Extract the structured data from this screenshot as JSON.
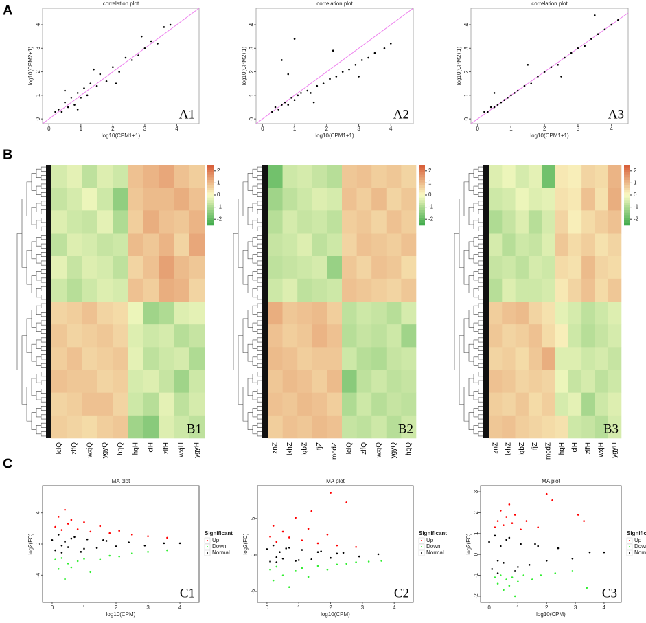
{
  "row_labels": [
    "A",
    "B",
    "C"
  ],
  "chart_data": [
    {
      "type": "scatter",
      "title": "correlation plot",
      "label": "A1",
      "x_label": "log10(CPM1+1)",
      "y_label": "log10(CPM2+1)",
      "color": "#000000",
      "identity_line_color": "#ee82ee",
      "x": [
        0.2,
        0.3,
        0.4,
        0.5,
        0.6,
        0.7,
        0.8,
        0.9,
        1.0,
        1.1,
        1.2,
        1.3,
        1.5,
        1.6,
        1.8,
        2.0,
        2.2,
        2.4,
        2.6,
        2.8,
        3.0,
        3.2,
        3.4,
        3.6,
        0.5,
        0.9,
        1.4,
        2.1,
        2.9,
        3.8
      ],
      "y": [
        0.3,
        0.4,
        0.3,
        0.7,
        0.5,
        0.9,
        0.6,
        1.1,
        0.9,
        1.3,
        1.0,
        1.5,
        1.4,
        1.9,
        1.6,
        2.2,
        2.0,
        2.6,
        2.5,
        2.7,
        3.0,
        3.3,
        3.2,
        3.9,
        1.2,
        0.4,
        2.1,
        1.5,
        3.5,
        4.0
      ],
      "xlim": [
        -0.2,
        4.7
      ],
      "ylim": [
        -0.2,
        4.7
      ],
      "xticks": [
        0,
        1,
        2,
        3,
        4
      ],
      "yticks": [
        0,
        1,
        2,
        3,
        4
      ]
    },
    {
      "type": "scatter",
      "title": "correlation plot",
      "label": "A2",
      "x_label": "log10(CPM1+1)",
      "y_label": "log10(CPM2+1)",
      "color": "#000000",
      "identity_line_color": "#ee82ee",
      "x": [
        0.3,
        0.4,
        0.5,
        0.6,
        0.7,
        0.8,
        0.9,
        1.0,
        1.1,
        1.2,
        1.4,
        1.5,
        1.7,
        1.9,
        2.1,
        2.3,
        2.5,
        2.7,
        2.9,
        3.1,
        3.3,
        3.5,
        3.8,
        4.0,
        0.6,
        1.0,
        1.6,
        2.2,
        0.8,
        3.0
      ],
      "y": [
        0.3,
        0.5,
        0.4,
        0.6,
        0.7,
        0.6,
        0.9,
        0.8,
        1.0,
        1.1,
        1.2,
        1.1,
        1.4,
        1.5,
        1.7,
        1.8,
        2.0,
        2.1,
        2.3,
        2.5,
        2.6,
        2.8,
        3.0,
        3.2,
        2.5,
        3.4,
        0.7,
        2.9,
        1.9,
        1.8
      ],
      "xlim": [
        -0.2,
        4.7
      ],
      "ylim": [
        -0.2,
        4.7
      ],
      "xticks": [
        0,
        1,
        2,
        3,
        4
      ],
      "yticks": [
        0,
        1,
        2,
        3,
        4
      ]
    },
    {
      "type": "scatter",
      "title": "correlation plot",
      "label": "A3",
      "x_label": "log10(CPM1+1)",
      "y_label": "log10(CPM2+1)",
      "color": "#000000",
      "identity_line_color": "#ee82ee",
      "x": [
        0.2,
        0.3,
        0.4,
        0.5,
        0.6,
        0.7,
        0.8,
        0.9,
        1.0,
        1.1,
        1.2,
        1.4,
        1.6,
        1.8,
        2.0,
        2.2,
        2.4,
        2.6,
        2.8,
        3.0,
        3.2,
        3.4,
        3.6,
        3.8,
        4.0,
        4.2,
        0.5,
        1.5,
        2.5,
        3.5
      ],
      "y": [
        0.3,
        0.3,
        0.5,
        0.5,
        0.6,
        0.7,
        0.8,
        0.9,
        1.0,
        1.1,
        1.2,
        1.4,
        1.5,
        1.8,
        2.0,
        2.2,
        2.3,
        2.6,
        2.8,
        3.0,
        3.1,
        3.4,
        3.6,
        3.8,
        4.0,
        4.2,
        1.1,
        2.3,
        1.8,
        4.4
      ],
      "xlim": [
        -0.2,
        4.5
      ],
      "ylim": [
        -0.2,
        4.7
      ],
      "xticks": [
        0,
        1,
        2,
        3,
        4
      ],
      "yticks": [
        0,
        1,
        2,
        3,
        4
      ]
    },
    {
      "type": "heatmap",
      "label": "B1",
      "colorscale": [
        "#3daa4a",
        "#fbfbc4",
        "#d65a35"
      ],
      "zlim": [
        -2.5,
        2.5
      ],
      "zticks": [
        2,
        1,
        0,
        -1,
        -2
      ],
      "columns": [
        "lclQ",
        "zlfQ",
        "wxjQ",
        "ygyQ",
        "hqQ",
        "hqH",
        "lclH",
        "zlfH",
        "wxjH",
        "ygyH"
      ],
      "values": [
        [
          -0.5,
          -0.3,
          -0.8,
          -0.4,
          -0.6,
          0.9,
          1.1,
          1.3,
          0.9,
          0.7
        ],
        [
          -0.7,
          -0.5,
          -0.2,
          -0.6,
          -1.4,
          0.8,
          1.0,
          1.0,
          1.2,
          0.9
        ],
        [
          -0.4,
          -0.6,
          -0.7,
          -0.3,
          -1.0,
          0.7,
          1.2,
          0.9,
          0.8,
          1.1
        ],
        [
          -0.8,
          -0.4,
          -0.5,
          -0.7,
          -0.6,
          1.0,
          0.8,
          1.1,
          0.6,
          1.3
        ],
        [
          -0.3,
          -0.7,
          -0.4,
          -0.5,
          -0.8,
          0.6,
          0.9,
          1.4,
          1.0,
          0.8
        ],
        [
          -0.6,
          -0.9,
          -0.6,
          -0.4,
          -0.5,
          0.9,
          0.7,
          1.2,
          1.1,
          0.6
        ],
        [
          0.6,
          0.7,
          0.9,
          0.6,
          0.5,
          -0.2,
          -1.2,
          -1.0,
          -0.4,
          -0.3
        ],
        [
          0.8,
          0.6,
          0.7,
          0.8,
          0.6,
          -0.4,
          -0.6,
          -0.5,
          -0.9,
          -0.7
        ],
        [
          0.7,
          0.9,
          0.6,
          0.7,
          0.8,
          -0.3,
          -0.8,
          -0.6,
          -0.5,
          -1.0
        ],
        [
          0.9,
          0.8,
          0.8,
          0.6,
          0.7,
          -0.5,
          -0.4,
          -0.7,
          -1.2,
          -0.6
        ],
        [
          0.6,
          0.7,
          0.9,
          0.9,
          0.6,
          -0.6,
          -0.9,
          -0.3,
          -0.8,
          -0.5
        ],
        [
          0.7,
          0.6,
          0.5,
          0.7,
          0.8,
          -1.2,
          -1.5,
          -0.4,
          -0.6,
          -0.8
        ]
      ]
    },
    {
      "type": "heatmap",
      "label": "B2",
      "colorscale": [
        "#3daa4a",
        "#fbfbc4",
        "#d65a35"
      ],
      "zlim": [
        -2.5,
        2.5
      ],
      "zticks": [
        2,
        1,
        0,
        -1,
        -2
      ],
      "columns": [
        "znZ",
        "lxhZ",
        "lqbZ",
        "fjZ",
        "mcdZ",
        "lclQ",
        "zlfQ",
        "wxjQ",
        "ygyQ",
        "hqQ"
      ],
      "values": [
        [
          -1.8,
          -0.6,
          -0.5,
          -0.7,
          -0.9,
          0.8,
          0.9,
          0.7,
          0.8,
          0.6
        ],
        [
          -1.2,
          -0.8,
          -0.6,
          -0.4,
          -0.5,
          0.9,
          0.7,
          1.0,
          0.6,
          0.8
        ],
        [
          -0.9,
          -0.5,
          -0.7,
          -0.6,
          -0.8,
          0.7,
          0.8,
          0.6,
          0.9,
          0.7
        ],
        [
          -0.7,
          -0.6,
          -0.4,
          -0.8,
          -0.6,
          0.6,
          0.9,
          0.8,
          0.7,
          0.9
        ],
        [
          -0.8,
          -0.7,
          -0.6,
          -0.5,
          -1.3,
          0.8,
          0.6,
          0.9,
          0.8,
          0.5
        ],
        [
          -0.6,
          -0.4,
          -0.8,
          -0.7,
          -0.6,
          0.9,
          0.8,
          0.7,
          0.6,
          0.8
        ],
        [
          1.2,
          0.8,
          0.9,
          1.0,
          0.7,
          -0.8,
          -0.6,
          -0.7,
          -0.9,
          -0.5
        ],
        [
          0.9,
          0.7,
          0.8,
          1.1,
          0.9,
          -0.9,
          -0.7,
          -0.8,
          -0.6,
          -1.2
        ],
        [
          1.0,
          0.9,
          0.7,
          0.8,
          0.8,
          -0.6,
          -0.9,
          -1.0,
          -0.7,
          -0.6
        ],
        [
          0.8,
          1.0,
          0.9,
          0.7,
          1.0,
          -1.5,
          -0.8,
          -0.6,
          -0.8,
          -0.7
        ],
        [
          0.9,
          0.8,
          1.0,
          0.9,
          0.7,
          -1.0,
          -0.6,
          -0.9,
          -0.7,
          -0.8
        ],
        [
          0.7,
          0.9,
          0.8,
          1.0,
          0.9,
          -0.7,
          -0.8,
          -0.6,
          -0.9,
          -0.6
        ]
      ]
    },
    {
      "type": "heatmap",
      "label": "B3",
      "colorscale": [
        "#3daa4a",
        "#fbfbc4",
        "#d65a35"
      ],
      "zlim": [
        -2.5,
        2.5
      ],
      "zticks": [
        2,
        1,
        0,
        -1,
        -2
      ],
      "columns": [
        "znZ",
        "lxhZ",
        "lqbZ",
        "fjZ",
        "mcdZ",
        "hqH",
        "lclH",
        "zlfH",
        "wxjH",
        "ygyH"
      ],
      "values": [
        [
          -0.4,
          -0.2,
          -0.5,
          -0.3,
          -1.8,
          0.3,
          0.2,
          0.6,
          0.5,
          1.1
        ],
        [
          -0.6,
          -0.5,
          -0.2,
          -0.4,
          -0.3,
          0.4,
          0.3,
          0.9,
          0.4,
          1.2
        ],
        [
          -1.0,
          -0.7,
          -0.4,
          -0.9,
          -0.5,
          0.6,
          0.2,
          0.5,
          0.7,
          0.9
        ],
        [
          -0.5,
          -0.9,
          -0.6,
          -0.7,
          -0.4,
          0.8,
          0.5,
          0.7,
          0.4,
          0.6
        ],
        [
          -0.7,
          -0.6,
          -0.8,
          -0.5,
          -0.6,
          0.5,
          0.4,
          1.0,
          0.6,
          0.5
        ],
        [
          -0.9,
          -0.4,
          -0.6,
          -0.6,
          -0.5,
          0.3,
          0.6,
          0.9,
          0.5,
          0.8
        ],
        [
          0.7,
          0.9,
          1.0,
          0.6,
          0.4,
          -0.3,
          -0.5,
          -0.8,
          -0.6,
          -0.4
        ],
        [
          0.8,
          0.6,
          0.7,
          0.9,
          0.5,
          0.2,
          -0.6,
          -0.9,
          -0.7,
          -0.5
        ],
        [
          0.6,
          0.7,
          0.5,
          0.8,
          1.2,
          -0.4,
          -0.4,
          -0.6,
          -0.5,
          -0.7
        ],
        [
          0.9,
          0.8,
          0.6,
          0.7,
          0.6,
          -0.2,
          -0.7,
          -0.5,
          -0.8,
          -0.6
        ],
        [
          0.7,
          0.6,
          0.8,
          0.5,
          0.7,
          -0.5,
          -0.3,
          -1.1,
          -0.6,
          -0.4
        ],
        [
          0.8,
          0.9,
          0.7,
          0.6,
          0.5,
          0.4,
          -0.6,
          -0.7,
          -0.9,
          -0.5
        ]
      ]
    },
    {
      "type": "scatter",
      "title": "MA plot",
      "label": "C1",
      "x_label": "log10(CPM)",
      "y_label": "log2(FC)",
      "legend_title": "Significant",
      "legend": "right",
      "xlim": [
        -0.3,
        4.6
      ],
      "ylim": [
        -7.5,
        7.5
      ],
      "xticks": [
        0,
        1,
        2,
        3,
        4
      ],
      "yticks": [
        -4,
        0,
        4
      ],
      "series": [
        {
          "name": "Up",
          "color": "#ff0000",
          "x": [
            0.1,
            0.2,
            0.3,
            0.4,
            0.5,
            0.6,
            0.8,
            1.0,
            1.2,
            1.5,
            1.8,
            2.1,
            2.5,
            3.0,
            3.6
          ],
          "values": [
            2.2,
            3.5,
            1.8,
            4.4,
            2.6,
            3.1,
            1.9,
            2.8,
            1.6,
            2.3,
            1.4,
            1.7,
            1.2,
            1.0,
            0.8
          ]
        },
        {
          "name": "Down",
          "color": "#33ee33",
          "x": [
            0.1,
            0.2,
            0.3,
            0.4,
            0.5,
            0.6,
            0.8,
            1.0,
            1.2,
            1.5,
            1.8,
            2.1,
            2.5,
            3.0,
            3.6
          ],
          "values": [
            -2.0,
            -3.2,
            -1.8,
            -4.5,
            -2.5,
            -3.0,
            -2.2,
            -1.9,
            -3.6,
            -2.0,
            -1.5,
            -1.6,
            -1.2,
            -1.0,
            -0.8
          ]
        },
        {
          "name": "Normal",
          "color": "#000000",
          "x": [
            0.0,
            0.1,
            0.2,
            0.3,
            0.4,
            0.5,
            0.7,
            0.9,
            1.1,
            1.4,
            1.7,
            2.0,
            2.4,
            2.9,
            3.5,
            4.0,
            0.3,
            0.6,
            1.0,
            1.6
          ],
          "values": [
            0.5,
            -0.8,
            1.2,
            -1.1,
            0.3,
            -0.4,
            0.9,
            -1.0,
            0.6,
            -0.5,
            0.4,
            -0.3,
            0.2,
            -0.2,
            0.1,
            0.1,
            -0.2,
            0.7,
            -0.6,
            0.5
          ]
        }
      ]
    },
    {
      "type": "scatter",
      "title": "MA plot",
      "label": "C2",
      "x_label": "log10(CPM)",
      "y_label": "log2(FC)",
      "legend_title": "Significant",
      "legend": "right",
      "xlim": [
        -0.3,
        4.6
      ],
      "ylim": [
        -6.5,
        9.5
      ],
      "xticks": [
        0,
        1,
        2,
        3,
        4
      ],
      "yticks": [
        -5,
        0,
        5
      ],
      "series": [
        {
          "name": "Up",
          "color": "#ff0000",
          "x": [
            0.1,
            0.2,
            0.3,
            0.5,
            0.7,
            0.9,
            1.1,
            1.3,
            1.6,
            1.9,
            2.2,
            2.5,
            2.8,
            1.4,
            2.0
          ],
          "values": [
            2.5,
            4.0,
            1.8,
            3.2,
            2.4,
            5.1,
            2.0,
            3.6,
            1.6,
            2.8,
            1.3,
            7.2,
            1.1,
            6.0,
            8.5
          ]
        },
        {
          "name": "Down",
          "color": "#33ee33",
          "x": [
            0.1,
            0.2,
            0.3,
            0.5,
            0.7,
            0.9,
            1.1,
            1.3,
            1.6,
            1.9,
            2.2,
            2.5,
            2.8,
            3.2,
            3.6
          ],
          "values": [
            -2.0,
            -3.5,
            -1.6,
            -2.8,
            -4.4,
            -2.2,
            -1.8,
            -3.0,
            -1.5,
            -2.0,
            -1.3,
            -1.2,
            -1.0,
            -0.9,
            -0.8
          ]
        },
        {
          "name": "Normal",
          "color": "#000000",
          "x": [
            0.0,
            0.1,
            0.2,
            0.3,
            0.4,
            0.5,
            0.7,
            0.9,
            1.1,
            1.4,
            1.7,
            2.0,
            2.4,
            2.9,
            3.5,
            0.3,
            0.6,
            1.0,
            1.6,
            2.2
          ],
          "values": [
            0.8,
            -0.9,
            1.3,
            -1.0,
            0.4,
            -0.5,
            1.0,
            -0.8,
            0.7,
            -0.6,
            0.5,
            -0.4,
            0.3,
            -0.2,
            0.1,
            -0.3,
            0.9,
            -0.7,
            0.4,
            0.2
          ]
        }
      ]
    },
    {
      "type": "scatter",
      "title": "MA plot",
      "label": "C3",
      "x_label": "log10(CPM)",
      "y_label": "log2(FC)",
      "legend_title": "Significant",
      "legend": "right",
      "xlim": [
        -0.3,
        4.6
      ],
      "ylim": [
        -2.3,
        3.3
      ],
      "xticks": [
        0,
        1,
        2,
        3,
        4
      ],
      "yticks": [
        -2,
        -1,
        0,
        1,
        2,
        3
      ],
      "series": [
        {
          "name": "Up",
          "color": "#ff0000",
          "x": [
            0.2,
            0.3,
            0.4,
            0.5,
            0.6,
            0.7,
            0.8,
            0.9,
            1.1,
            1.3,
            2.0,
            2.2,
            3.1,
            3.3,
            1.7
          ],
          "values": [
            1.3,
            1.6,
            2.1,
            1.4,
            1.8,
            2.4,
            1.5,
            1.9,
            1.2,
            1.6,
            2.9,
            2.6,
            1.9,
            1.6,
            1.3
          ]
        },
        {
          "name": "Down",
          "color": "#33ee33",
          "x": [
            0.2,
            0.3,
            0.4,
            0.5,
            0.6,
            0.7,
            0.8,
            1.0,
            1.2,
            1.5,
            1.8,
            2.3,
            2.9,
            3.4,
            0.9
          ],
          "values": [
            -1.1,
            -1.4,
            -1.0,
            -1.7,
            -1.2,
            -1.5,
            -1.1,
            -1.3,
            -1.0,
            -1.2,
            -1.0,
            -0.9,
            -0.8,
            -1.6,
            -2.0
          ]
        },
        {
          "name": "Normal",
          "color": "#000000",
          "x": [
            0.0,
            0.1,
            0.2,
            0.3,
            0.4,
            0.5,
            0.7,
            0.9,
            1.1,
            1.4,
            1.7,
            2.0,
            2.4,
            2.9,
            3.5,
            4.0,
            0.3,
            0.6,
            1.0,
            1.6
          ],
          "values": [
            0.6,
            -0.7,
            0.9,
            -0.9,
            0.4,
            -0.4,
            0.8,
            -0.8,
            0.5,
            -0.5,
            0.4,
            -0.3,
            0.3,
            -0.2,
            0.1,
            0.1,
            -0.3,
            0.7,
            -0.6,
            0.5
          ]
        }
      ]
    }
  ]
}
